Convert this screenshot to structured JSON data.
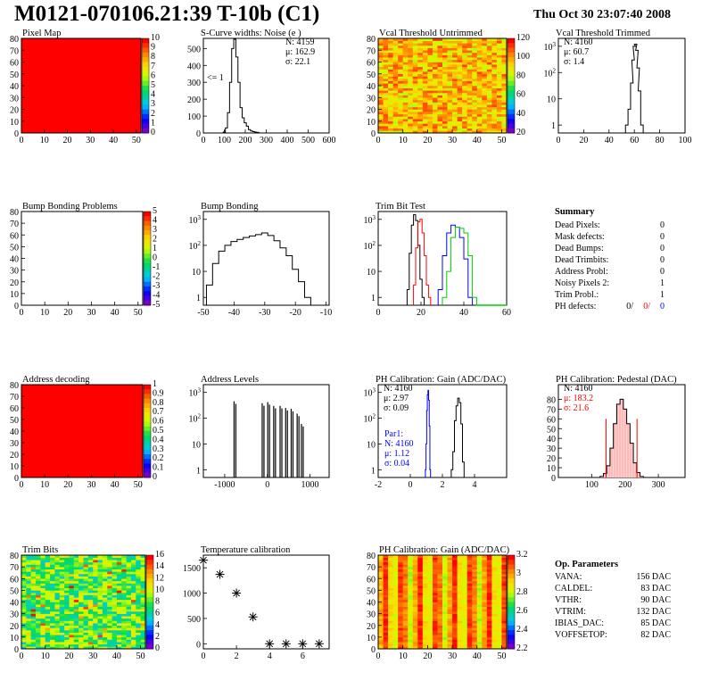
{
  "page": {
    "title": "M0121-070106.21:39 T-10b (C1)",
    "date": "Thu Oct 30 23:07:40 2008"
  },
  "colors": {
    "red": "#ff0000",
    "blue": "#0000ff",
    "green": "#00cc00",
    "black": "#000000"
  },
  "chart_data": [
    {
      "id": "pixel_map",
      "type": "heatmap",
      "title": "Pixel Map",
      "xlim": [
        0,
        52
      ],
      "ylim": [
        0,
        80
      ],
      "xticks": [
        0,
        10,
        20,
        30,
        40,
        50
      ],
      "yticks": [
        0,
        10,
        20,
        30,
        40,
        50,
        60,
        70,
        80
      ],
      "z_uniform": 10,
      "zlim": [
        0,
        10
      ],
      "palette_labels": [
        "10",
        "9",
        "8",
        "7",
        "6",
        "5",
        "4",
        "3",
        "2",
        "1",
        "0"
      ]
    },
    {
      "id": "scurve_widths",
      "type": "histogram",
      "title": "S-Curve widths: Noise (e )",
      "xlim": [
        0,
        600
      ],
      "ylim": [
        0,
        560
      ],
      "xticks": [
        0,
        100,
        200,
        300,
        400,
        500,
        600
      ],
      "yticks": [
        0,
        100,
        200,
        300,
        400,
        500
      ],
      "stats": [
        "N: 4159",
        "μ: 162.9",
        "σ: 22.1"
      ],
      "annotation": "<= 1",
      "series": [
        {
          "color": "#000000",
          "x": [
            100,
            110,
            120,
            130,
            140,
            150,
            160,
            170,
            180,
            190,
            200,
            210,
            220,
            230,
            240,
            250,
            260,
            270
          ],
          "y": [
            5,
            30,
            120,
            300,
            500,
            555,
            450,
            300,
            150,
            90,
            60,
            40,
            20,
            12,
            8,
            5,
            3,
            0
          ]
        }
      ]
    },
    {
      "id": "vcal_untrimmed",
      "type": "heatmap",
      "title": "Vcal Threshold Untrimmed",
      "xlim": [
        0,
        52
      ],
      "ylim": [
        0,
        80
      ],
      "xticks": [
        0,
        10,
        20,
        30,
        40,
        50
      ],
      "yticks": [
        0,
        10,
        20,
        30,
        40,
        50,
        60,
        70,
        80
      ],
      "pattern": "noise_orange",
      "zlim": [
        0,
        130
      ],
      "palette_labels": [
        "120",
        "100",
        "80",
        "60",
        "40",
        "20"
      ]
    },
    {
      "id": "vcal_trimmed",
      "type": "histogram",
      "title": "Vcal Threshold Trimmed",
      "log_y": true,
      "xlim": [
        0,
        100
      ],
      "ylim": [
        0.5,
        2000
      ],
      "xticks": [
        0,
        20,
        40,
        60,
        80,
        100
      ],
      "yticks": [
        1,
        10,
        100,
        1000
      ],
      "stats": [
        "N: 4160",
        "μ: 60.7",
        "σ: 1.4"
      ],
      "series": [
        {
          "color": "#000000",
          "x": [
            54,
            56,
            58,
            59,
            60,
            61,
            62,
            63,
            64,
            66
          ],
          "y": [
            1,
            4,
            40,
            300,
            1000,
            1200,
            700,
            150,
            20,
            1
          ]
        }
      ]
    },
    {
      "id": "bump_bonding_problems",
      "type": "heatmap",
      "title": "Bump Bonding Problems",
      "xlim": [
        0,
        52
      ],
      "ylim": [
        0,
        80
      ],
      "xticks": [
        0,
        10,
        20,
        30,
        40,
        50
      ],
      "yticks": [
        0,
        10,
        20,
        30,
        40,
        50,
        60,
        70,
        80
      ],
      "pattern": "empty",
      "zlim": [
        -5,
        5
      ],
      "palette_labels": [
        "5",
        "4",
        "3",
        "2",
        "1",
        "0",
        "-1",
        "-2",
        "-3",
        "-4",
        "-5"
      ]
    },
    {
      "id": "bump_bonding",
      "type": "histogram",
      "title": "Bump Bonding",
      "log_y": true,
      "xlim": [
        -50,
        -9
      ],
      "ylim": [
        0.5,
        2000
      ],
      "xticks": [
        -50,
        -40,
        -30,
        -20,
        -10
      ],
      "yticks": [
        1,
        10,
        100,
        1000
      ],
      "series": [
        {
          "color": "#000000",
          "x": [
            -48,
            -46,
            -44,
            -42,
            -40,
            -38,
            -36,
            -34,
            -32,
            -30,
            -28,
            -26,
            -24,
            -22,
            -20,
            -18,
            -16
          ],
          "y": [
            3,
            20,
            60,
            100,
            140,
            170,
            200,
            230,
            260,
            300,
            240,
            150,
            80,
            40,
            12,
            4,
            1
          ]
        }
      ]
    },
    {
      "id": "trim_bit_test",
      "type": "histogram",
      "title": "Trim Bit Test",
      "log_y": true,
      "xlim": [
        0,
        60
      ],
      "ylim": [
        0.5,
        2000
      ],
      "xticks": [
        0,
        20,
        40,
        60
      ],
      "yticks": [
        1,
        10,
        100,
        1000
      ],
      "series": [
        {
          "color": "#000000",
          "x": [
            14,
            15,
            16,
            17,
            18,
            19,
            20,
            21
          ],
          "y": [
            2,
            50,
            600,
            1500,
            900,
            100,
            5,
            1
          ]
        },
        {
          "color": "#ff0000",
          "x": [
            17,
            18,
            19,
            20,
            21,
            22,
            23,
            24
          ],
          "y": [
            3,
            80,
            800,
            1000,
            300,
            40,
            3,
            1
          ]
        },
        {
          "color": "#0000ff",
          "x": [
            29,
            31,
            33,
            35,
            37,
            39,
            41,
            43
          ],
          "y": [
            2,
            40,
            300,
            600,
            500,
            200,
            30,
            1
          ]
        },
        {
          "color": "#00cc00",
          "x": [
            31,
            33,
            35,
            37,
            39,
            41,
            43,
            45
          ],
          "y": [
            1,
            10,
            200,
            500,
            450,
            300,
            40,
            1
          ]
        }
      ]
    },
    {
      "id": "address_decoding",
      "type": "heatmap",
      "title": "Address decoding",
      "xlim": [
        0,
        52
      ],
      "ylim": [
        0,
        80
      ],
      "xticks": [
        0,
        10,
        20,
        30,
        40,
        50
      ],
      "yticks": [
        0,
        10,
        20,
        30,
        40,
        50,
        60,
        70,
        80
      ],
      "z_uniform": 1,
      "zlim": [
        0,
        1
      ],
      "palette_labels": [
        "1",
        "0.9",
        "0.8",
        "0.7",
        "0.6",
        "0.5",
        "0.4",
        "0.3",
        "0.2",
        "0.1",
        "0"
      ]
    },
    {
      "id": "address_levels",
      "type": "histogram",
      "title": "Address Levels",
      "log_y": true,
      "xlim": [
        -1500,
        1450
      ],
      "ylim": [
        0.5,
        2000
      ],
      "xticks": [
        -1000,
        0,
        1000
      ],
      "yticks": [
        1,
        10,
        100,
        1000
      ],
      "series": [
        {
          "color": "#000000",
          "x": [
            -780,
            -120,
            10,
            150,
            300,
            430,
            560,
            700,
            800
          ],
          "y": [
            450,
            380,
            420,
            300,
            300,
            250,
            230,
            150,
            60
          ]
        }
      ]
    },
    {
      "id": "ph_gain",
      "type": "histogram",
      "title": "PH Calibration: Gain (ADC/DAC)",
      "log_y": true,
      "xlim": [
        -2,
        6
      ],
      "ylim": [
        0.5,
        2000
      ],
      "xticks": [
        -2,
        0,
        2,
        4
      ],
      "yticks": [
        1,
        10,
        100,
        1000
      ],
      "stats": [
        "N: 4160",
        "μ: 2.97",
        "σ: 0.09"
      ],
      "stats2": [
        "Par1:",
        "N: 4160",
        "μ: 1.12",
        "σ: 0.04"
      ],
      "series": [
        {
          "color": "#000000",
          "x": [
            2.6,
            2.7,
            2.8,
            2.9,
            3.0,
            3.1,
            3.2,
            3.3
          ],
          "y": [
            1,
            5,
            80,
            300,
            600,
            400,
            60,
            2
          ]
        },
        {
          "color": "#0000ff",
          "x": [
            0.96,
            1.0,
            1.04,
            1.08,
            1.12,
            1.16,
            1.2,
            1.24
          ],
          "y": [
            1,
            10,
            200,
            800,
            1200,
            500,
            50,
            1
          ]
        }
      ]
    },
    {
      "id": "ph_pedestal",
      "type": "histogram",
      "title": "PH Calibration: Pedestal (DAC)",
      "log_y": false,
      "xlim": [
        0,
        380
      ],
      "ylim": [
        0,
        95
      ],
      "xticks": [
        100,
        200,
        300
      ],
      "yticks": [
        0,
        10,
        20,
        30,
        40,
        50,
        60,
        70,
        80
      ],
      "stats": [
        "N: 4160",
        "μ: 183.2",
        "σ: 21.6"
      ],
      "series": [
        {
          "color": "#000000",
          "x": [
            130,
            140,
            150,
            160,
            170,
            180,
            190,
            200,
            210,
            220,
            230,
            240,
            250
          ],
          "y": [
            1,
            4,
            12,
            30,
            55,
            75,
            80,
            70,
            55,
            35,
            15,
            5,
            1
          ]
        }
      ]
    },
    {
      "id": "trim_bits",
      "type": "heatmap",
      "title": "Trim Bits",
      "xlim": [
        0,
        52
      ],
      "ylim": [
        0,
        80
      ],
      "xticks": [
        0,
        10,
        20,
        30,
        40,
        50
      ],
      "yticks": [
        0,
        10,
        20,
        30,
        40,
        50,
        60,
        70,
        80
      ],
      "pattern": "noise_green",
      "zlim": [
        0,
        16
      ],
      "palette_labels": [
        "16",
        "14",
        "12",
        "10",
        "8",
        "6",
        "4",
        "2",
        "0"
      ]
    },
    {
      "id": "temperature_calibration",
      "type": "scatter",
      "title": "Temperature calibration",
      "xlim": [
        0,
        7.6
      ],
      "ylim": [
        -100,
        1750
      ],
      "xticks": [
        0,
        2,
        4,
        6
      ],
      "yticks": [
        0,
        500,
        1000,
        1500
      ],
      "series": [
        {
          "color": "#000000",
          "x": [
            0,
            1,
            2,
            3,
            4,
            5,
            6,
            7
          ],
          "y": [
            1650,
            1370,
            1000,
            530,
            0,
            0,
            0,
            0
          ]
        }
      ]
    },
    {
      "id": "ph_gain_map",
      "type": "heatmap",
      "title": "PH Calibration: Gain (ADC/DAC)",
      "xlim": [
        0,
        52
      ],
      "ylim": [
        0,
        80
      ],
      "xticks": [
        0,
        10,
        20,
        30,
        40,
        50
      ],
      "yticks": [
        0,
        10,
        20,
        30,
        40,
        50,
        60,
        70,
        80
      ],
      "pattern": "stripes",
      "zlim": [
        2.2,
        3.2
      ],
      "palette_labels": [
        "3.2",
        "3",
        "2.8",
        "2.6",
        "2.4",
        "2.2"
      ]
    }
  ],
  "summary": {
    "title": "Summary",
    "rows": [
      {
        "label": "Dead Pixels:",
        "value": "0"
      },
      {
        "label": "Mask defects:",
        "value": "0"
      },
      {
        "label": "Dead Bumps:",
        "value": "0"
      },
      {
        "label": "Dead Trimbits:",
        "value": "0"
      },
      {
        "label": "Address Probl:",
        "value": "0"
      },
      {
        "label": "Noisy Pixels 2:",
        "value": "1"
      },
      {
        "label": "Trim Probl.:",
        "value": "1"
      }
    ],
    "ph_label": "PH defects:",
    "ph_values": [
      "0/",
      "0/",
      "0"
    ]
  },
  "op_params": {
    "title": "Op. Parameters",
    "rows": [
      {
        "label": "VANA:",
        "value": "156 DAC"
      },
      {
        "label": "CALDEL:",
        "value": "83 DAC"
      },
      {
        "label": "VTHR:",
        "value": "90 DAC"
      },
      {
        "label": "VTRIM:",
        "value": "132 DAC"
      },
      {
        "label": "IBIAS_DAC:",
        "value": "85 DAC"
      },
      {
        "label": "VOFFSETOP:",
        "value": "82 DAC"
      }
    ]
  }
}
